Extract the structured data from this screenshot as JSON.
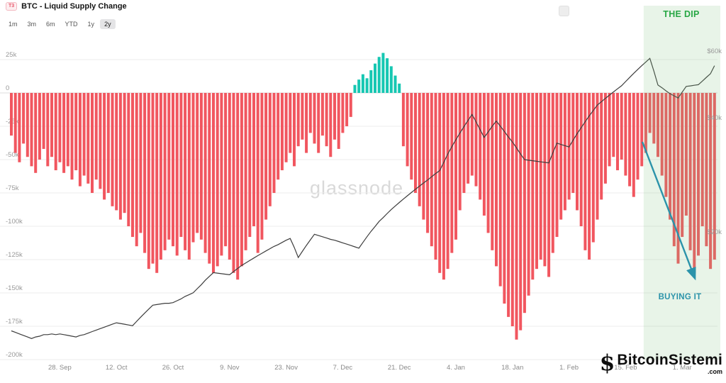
{
  "header": {
    "badge": "T3",
    "title": "BTC - Liquid Supply Change"
  },
  "toolbar": {
    "ranges": [
      "1m",
      "3m",
      "6m",
      "YTD",
      "1y",
      "2y"
    ],
    "selected": "2y"
  },
  "watermark": "glassnode",
  "logo": {
    "name": "BitcoinSistemi",
    "tld": ".com"
  },
  "chart_data": {
    "type": "bar",
    "title": "BTC - Liquid Supply Change",
    "legend_position": "none",
    "grid": true,
    "left_axis": {
      "unit": "BTC (thousands)",
      "ticks": [
        {
          "label": "25k",
          "value": 25
        },
        {
          "label": "0",
          "value": 0
        },
        {
          "label": "-25k",
          "value": -25
        },
        {
          "label": "-50k",
          "value": -50
        },
        {
          "label": "-75k",
          "value": -75
        },
        {
          "label": "-100k",
          "value": -100
        },
        {
          "label": "-125k",
          "value": -125
        },
        {
          "label": "-150k",
          "value": -150
        },
        {
          "label": "-175k",
          "value": -175
        },
        {
          "label": "-200k",
          "value": -200
        }
      ],
      "range": [
        -200,
        25
      ]
    },
    "right_axis": {
      "unit": "USD (thousands)",
      "scale": "log",
      "ticks": [
        {
          "label": "$60k",
          "value": 60
        },
        {
          "label": "$40k",
          "value": 40
        },
        {
          "label": "$20k",
          "value": 20
        }
      ]
    },
    "x_ticks": [
      {
        "label": "28. Sep",
        "index": 12
      },
      {
        "label": "12. Oct",
        "index": 26
      },
      {
        "label": "26. Oct",
        "index": 40
      },
      {
        "label": "9. Nov",
        "index": 54
      },
      {
        "label": "23. Nov",
        "index": 68
      },
      {
        "label": "7. Dec",
        "index": 82
      },
      {
        "label": "21. Dec",
        "index": 96
      },
      {
        "label": "4. Jan",
        "index": 110
      },
      {
        "label": "18. Jan",
        "index": 124
      },
      {
        "label": "1. Feb",
        "index": 138
      },
      {
        "label": "15. Feb",
        "index": 152
      },
      {
        "label": "1. Mar",
        "index": 166
      }
    ],
    "series": [
      {
        "name": "Liquid Supply Change",
        "type": "bar",
        "unit": "k BTC / day",
        "values": [
          -32,
          -45,
          -52,
          -38,
          -48,
          -55,
          -60,
          -50,
          -42,
          -55,
          -48,
          -58,
          -52,
          -60,
          -55,
          -65,
          -58,
          -70,
          -62,
          -68,
          -75,
          -65,
          -72,
          -80,
          -75,
          -85,
          -88,
          -95,
          -90,
          -100,
          -108,
          -115,
          -105,
          -120,
          -132,
          -128,
          -135,
          -125,
          -118,
          -110,
          -115,
          -122,
          -108,
          -118,
          -125,
          -112,
          -105,
          -110,
          -120,
          -128,
          -135,
          -130,
          -122,
          -115,
          -125,
          -135,
          -140,
          -130,
          -118,
          -108,
          -100,
          -120,
          -110,
          -95,
          -85,
          -75,
          -65,
          -58,
          -52,
          -45,
          -55,
          -40,
          -35,
          -45,
          -30,
          -38,
          -45,
          -32,
          -40,
          -48,
          -35,
          -42,
          -30,
          -25,
          -18,
          6,
          10,
          14,
          11,
          17,
          22,
          27,
          30,
          26,
          20,
          13,
          7,
          -40,
          -55,
          -65,
          -75,
          -85,
          -95,
          -105,
          -115,
          -125,
          -135,
          -140,
          -132,
          -120,
          -110,
          -88,
          -75,
          -68,
          -62,
          -70,
          -80,
          -92,
          -105,
          -118,
          -130,
          -145,
          -158,
          -168,
          -175,
          -185,
          -178,
          -165,
          -152,
          -140,
          -132,
          -125,
          -130,
          -138,
          -120,
          -108,
          -95,
          -88,
          -80,
          -75,
          -88,
          -100,
          -118,
          -125,
          -112,
          -95,
          -80,
          -68,
          -55,
          -48,
          -58,
          -50,
          -62,
          -70,
          -78,
          -65,
          -55,
          -45,
          -30,
          -38,
          -48,
          -62,
          -78,
          -95,
          -115,
          -128,
          -108,
          -92,
          -118,
          -135,
          -122,
          -100,
          -115,
          -132,
          -125
        ]
      },
      {
        "name": "BTC Price",
        "type": "line",
        "axis": "right",
        "unit": "$k",
        "values": [
          10.95,
          10.85,
          10.75,
          10.65,
          10.55,
          10.45,
          10.55,
          10.6,
          10.7,
          10.7,
          10.75,
          10.7,
          10.75,
          10.7,
          10.65,
          10.6,
          10.55,
          10.65,
          10.7,
          10.8,
          10.9,
          11.0,
          11.1,
          11.2,
          11.3,
          11.4,
          11.5,
          11.45,
          11.4,
          11.35,
          11.3,
          11.6,
          11.9,
          12.2,
          12.5,
          12.8,
          12.85,
          12.9,
          12.95,
          12.95,
          13.0,
          13.15,
          13.3,
          13.5,
          13.65,
          13.8,
          14.15,
          14.5,
          14.9,
          15.25,
          15.6,
          15.55,
          15.5,
          15.45,
          15.4,
          15.7,
          16.0,
          16.3,
          16.55,
          16.8,
          17.05,
          17.3,
          17.55,
          17.8,
          18.05,
          18.3,
          18.5,
          18.75,
          19.0,
          19.2,
          18.2,
          17.1,
          17.75,
          18.4,
          19.05,
          19.7,
          19.55,
          19.4,
          19.25,
          19.1,
          19.0,
          18.85,
          18.7,
          18.55,
          18.4,
          18.25,
          18.1,
          18.75,
          19.4,
          20.05,
          20.65,
          21.3,
          21.8,
          22.35,
          22.9,
          23.4,
          23.9,
          24.4,
          24.9,
          25.4,
          25.9,
          26.4,
          26.9,
          27.4,
          27.95,
          28.5,
          29.0,
          30.5,
          32.1,
          33.55,
          35.0,
          36.45,
          37.9,
          39.35,
          40.8,
          39.0,
          37.2,
          35.5,
          36.7,
          38.0,
          39.2,
          38.0,
          36.8,
          35.6,
          34.5,
          33.3,
          32.1,
          31.0,
          30.9,
          30.8,
          30.7,
          30.6,
          30.5,
          30.4,
          32.35,
          34.3,
          34.0,
          33.75,
          33.5,
          34.9,
          36.3,
          37.65,
          39.05,
          40.45,
          41.8,
          43.2,
          44.1,
          45.0,
          45.9,
          46.8,
          47.7,
          48.6,
          49.85,
          51.1,
          52.4,
          53.65,
          54.9,
          56.15,
          57.4,
          53.1,
          48.8,
          48.0,
          47.1,
          46.3,
          45.7,
          45.1,
          46.75,
          48.4,
          48.55,
          48.75,
          48.9,
          50.0,
          51.15,
          52.3,
          54.9
        ]
      }
    ],
    "annotations": {
      "dip_label": "THE DIP",
      "buy_label": "BUYING IT",
      "dip_start_index": 157
    },
    "colors": {
      "bar_negative": "#f1565f",
      "bar_positive": "#16c7b2",
      "price_line": "#3d3d3d",
      "dip_band": "rgba(125,195,125,0.18)",
      "dip_text": "#28a745",
      "buy_text": "#2b93aa",
      "grid": "#ececec",
      "zero_line": "#dcdcdc",
      "axis_text": "#999999"
    }
  }
}
